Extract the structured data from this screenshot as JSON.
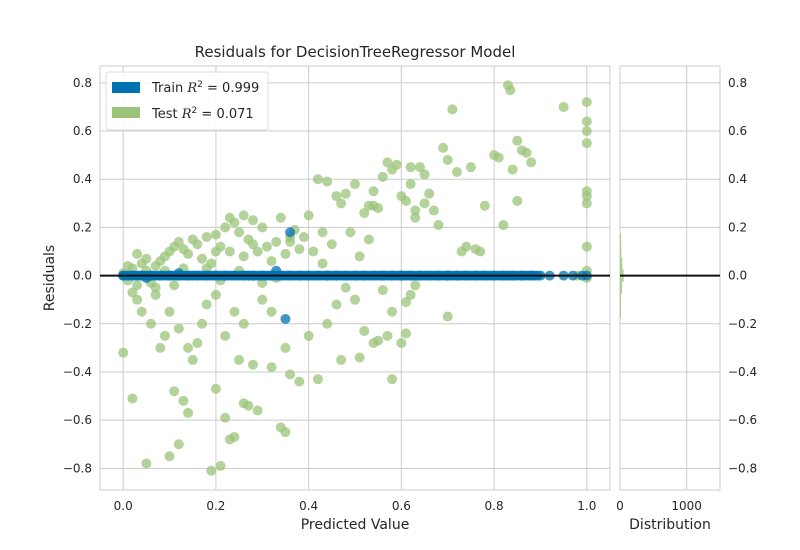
{
  "chart_data": {
    "type": "scatter",
    "title": "Residuals for DecisionTreeRegressor Model",
    "xlabel": "Predicted Value",
    "ylabel": "Residuals",
    "xlim": [
      -0.05,
      1.05
    ],
    "ylim": [
      -0.89,
      0.87
    ],
    "x_ticks": [
      "0.0",
      "0.2",
      "0.4",
      "0.6",
      "0.8",
      "1.0"
    ],
    "x_tick_values": [
      0,
      0.2,
      0.4,
      0.6,
      0.8,
      1.0
    ],
    "y_ticks": [
      "−0.8",
      "−0.6",
      "−0.4",
      "−0.2",
      "0.0",
      "0.2",
      "0.4",
      "0.6",
      "0.8"
    ],
    "y_tick_values": [
      -0.8,
      -0.6,
      -0.4,
      -0.2,
      0,
      0.2,
      0.4,
      0.6,
      0.8
    ],
    "grid": true,
    "legend_position": "top-left",
    "colors": {
      "train": "#0072b2",
      "test": "#9bc47a",
      "zero_line": "#111111",
      "grid": "#cccccc",
      "frame": "#cccccc"
    },
    "series": [
      {
        "name": "Train",
        "legend_label": "Train",
        "legend_r2": "0.999",
        "color": "#0072b2",
        "points": [
          [
            0.0,
            0.0
          ],
          [
            0.02,
            0.0
          ],
          [
            0.04,
            0.0
          ],
          [
            0.06,
            0.0
          ],
          [
            0.08,
            0.0
          ],
          [
            0.1,
            0.0
          ],
          [
            0.12,
            0.0
          ],
          [
            0.14,
            0.0
          ],
          [
            0.16,
            0.0
          ],
          [
            0.18,
            0.0
          ],
          [
            0.2,
            0.0
          ],
          [
            0.22,
            0.0
          ],
          [
            0.24,
            0.0
          ],
          [
            0.26,
            0.0
          ],
          [
            0.28,
            0.0
          ],
          [
            0.3,
            0.0
          ],
          [
            0.32,
            0.0
          ],
          [
            0.34,
            0.0
          ],
          [
            0.36,
            0.0
          ],
          [
            0.38,
            0.0
          ],
          [
            0.4,
            0.0
          ],
          [
            0.42,
            0.0
          ],
          [
            0.44,
            0.0
          ],
          [
            0.46,
            0.0
          ],
          [
            0.48,
            0.0
          ],
          [
            0.5,
            0.0
          ],
          [
            0.52,
            0.0
          ],
          [
            0.54,
            0.0
          ],
          [
            0.56,
            0.0
          ],
          [
            0.58,
            0.0
          ],
          [
            0.6,
            0.0
          ],
          [
            0.62,
            0.0
          ],
          [
            0.64,
            0.0
          ],
          [
            0.66,
            0.0
          ],
          [
            0.68,
            0.0
          ],
          [
            0.7,
            0.0
          ],
          [
            0.72,
            0.0
          ],
          [
            0.74,
            0.0
          ],
          [
            0.76,
            0.0
          ],
          [
            0.78,
            0.0
          ],
          [
            0.8,
            0.0
          ],
          [
            0.82,
            0.0
          ],
          [
            0.84,
            0.0
          ],
          [
            0.86,
            0.0
          ],
          [
            0.88,
            0.0
          ],
          [
            0.9,
            0.0
          ],
          [
            0.95,
            0.0
          ],
          [
            0.97,
            0.0
          ],
          [
            0.99,
            0.0
          ],
          [
            1.0,
            0.0
          ],
          [
            0.35,
            -0.18
          ],
          [
            0.36,
            0.18
          ],
          [
            0.33,
            0.02
          ],
          [
            0.12,
            0.01
          ],
          [
            0.05,
            -0.01
          ],
          [
            0.27,
            0.0
          ],
          [
            0.44,
            0.0
          ],
          [
            0.92,
            0.0
          ],
          [
            0.6,
            0.0
          ],
          [
            0.7,
            0.0
          ]
        ]
      },
      {
        "name": "Test",
        "legend_label": "Test",
        "legend_r2": "0.071",
        "color": "#9bc47a",
        "points": [
          [
            0.0,
            -0.32
          ],
          [
            0.02,
            -0.51
          ],
          [
            0.05,
            -0.78
          ],
          [
            0.1,
            -0.75
          ],
          [
            0.12,
            -0.7
          ],
          [
            0.11,
            -0.48
          ],
          [
            0.13,
            -0.52
          ],
          [
            0.14,
            -0.57
          ],
          [
            0.19,
            -0.81
          ],
          [
            0.21,
            -0.79
          ],
          [
            0.2,
            -0.47
          ],
          [
            0.23,
            -0.68
          ],
          [
            0.24,
            -0.67
          ],
          [
            0.22,
            -0.59
          ],
          [
            0.26,
            -0.53
          ],
          [
            0.27,
            -0.54
          ],
          [
            0.29,
            -0.56
          ],
          [
            0.34,
            -0.63
          ],
          [
            0.35,
            -0.65
          ],
          [
            0.28,
            -0.37
          ],
          [
            0.32,
            -0.38
          ],
          [
            0.36,
            -0.41
          ],
          [
            0.42,
            -0.43
          ],
          [
            0.38,
            -0.44
          ],
          [
            0.47,
            -0.35
          ],
          [
            0.51,
            -0.34
          ],
          [
            0.52,
            -0.23
          ],
          [
            0.57,
            -0.25
          ],
          [
            0.58,
            -0.43
          ],
          [
            0.6,
            -0.28
          ],
          [
            0.61,
            -0.24
          ],
          [
            0.54,
            -0.28
          ],
          [
            0.55,
            -0.27
          ],
          [
            0.62,
            -0.08
          ],
          [
            0.35,
            -0.3
          ],
          [
            0.4,
            -0.25
          ],
          [
            0.44,
            -0.2
          ],
          [
            0.46,
            -0.12
          ],
          [
            0.48,
            -0.05
          ],
          [
            0.5,
            -0.1
          ],
          [
            0.56,
            -0.06
          ],
          [
            0.58,
            -0.15
          ],
          [
            0.61,
            -0.11
          ],
          [
            0.63,
            -0.04
          ],
          [
            0.7,
            -0.17
          ],
          [
            0.15,
            -0.35
          ],
          [
            0.16,
            -0.28
          ],
          [
            0.08,
            -0.3
          ],
          [
            0.06,
            -0.2
          ],
          [
            0.09,
            -0.25
          ],
          [
            0.04,
            -0.15
          ],
          [
            0.03,
            -0.1
          ],
          [
            0.07,
            -0.05
          ],
          [
            0.1,
            -0.15
          ],
          [
            0.12,
            -0.22
          ],
          [
            0.14,
            -0.3
          ],
          [
            0.17,
            -0.2
          ],
          [
            0.18,
            -0.12
          ],
          [
            0.2,
            -0.08
          ],
          [
            0.22,
            -0.25
          ],
          [
            0.24,
            -0.15
          ],
          [
            0.25,
            -0.35
          ],
          [
            0.26,
            -0.2
          ],
          [
            0.3,
            -0.1
          ],
          [
            0.32,
            -0.15
          ],
          [
            0.0,
            0.01
          ],
          [
            0.01,
            -0.02
          ],
          [
            0.02,
            0.03
          ],
          [
            0.03,
            -0.04
          ],
          [
            0.04,
            0.05
          ],
          [
            0.05,
            0.02
          ],
          [
            0.06,
            -0.03
          ],
          [
            0.07,
            0.04
          ],
          [
            0.08,
            0.06
          ],
          [
            0.09,
            0.08
          ],
          [
            0.1,
            0.1
          ],
          [
            0.11,
            0.12
          ],
          [
            0.12,
            0.14
          ],
          [
            0.13,
            0.11
          ],
          [
            0.14,
            0.09
          ],
          [
            0.15,
            0.15
          ],
          [
            0.16,
            0.13
          ],
          [
            0.17,
            0.07
          ],
          [
            0.18,
            0.16
          ],
          [
            0.19,
            0.05
          ],
          [
            0.2,
            0.17
          ],
          [
            0.21,
            0.12
          ],
          [
            0.22,
            0.2
          ],
          [
            0.23,
            0.1
          ],
          [
            0.24,
            0.22
          ],
          [
            0.25,
            0.18
          ],
          [
            0.26,
            0.08
          ],
          [
            0.27,
            0.15
          ],
          [
            0.28,
            0.23
          ],
          [
            0.29,
            0.1
          ],
          [
            0.3,
            0.2
          ],
          [
            0.31,
            0.12
          ],
          [
            0.32,
            0.06
          ],
          [
            0.33,
            0.14
          ],
          [
            0.34,
            0.24
          ],
          [
            0.35,
            0.09
          ],
          [
            0.36,
            0.16
          ],
          [
            0.38,
            0.11
          ],
          [
            0.4,
            0.25
          ],
          [
            0.41,
            0.1
          ],
          [
            0.43,
            0.05
          ],
          [
            0.45,
            0.13
          ],
          [
            0.47,
            0.3
          ],
          [
            0.49,
            0.18
          ],
          [
            0.5,
            0.38
          ],
          [
            0.51,
            0.08
          ],
          [
            0.52,
            0.26
          ],
          [
            0.53,
            0.15
          ],
          [
            0.54,
            0.35
          ],
          [
            0.55,
            0.28
          ],
          [
            0.56,
            0.41
          ],
          [
            0.57,
            0.47
          ],
          [
            0.58,
            0.44
          ],
          [
            0.59,
            0.46
          ],
          [
            0.6,
            0.33
          ],
          [
            0.61,
            0.31
          ],
          [
            0.62,
            0.38
          ],
          [
            0.63,
            0.24
          ],
          [
            0.64,
            0.45
          ],
          [
            0.65,
            0.42
          ],
          [
            0.66,
            0.34
          ],
          [
            0.67,
            0.27
          ],
          [
            0.68,
            0.21
          ],
          [
            0.69,
            0.53
          ],
          [
            0.7,
            0.48
          ],
          [
            0.71,
            0.69
          ],
          [
            0.72,
            0.43
          ],
          [
            0.74,
            0.12
          ],
          [
            0.75,
            0.45
          ],
          [
            0.77,
            0.1
          ],
          [
            0.78,
            0.29
          ],
          [
            0.8,
            0.5
          ],
          [
            0.81,
            0.49
          ],
          [
            0.82,
            0.21
          ],
          [
            0.83,
            0.79
          ],
          [
            0.835,
            0.77
          ],
          [
            0.84,
            0.44
          ],
          [
            0.85,
            0.56
          ],
          [
            0.86,
            0.52
          ],
          [
            0.87,
            0.51
          ],
          [
            0.88,
            0.47
          ],
          [
            0.85,
            0.31
          ],
          [
            0.95,
            0.7
          ],
          [
            0.98,
            0.0
          ],
          [
            1.0,
            0.72
          ],
          [
            1.0,
            0.64
          ],
          [
            1.0,
            0.6
          ],
          [
            1.0,
            0.55
          ],
          [
            1.0,
            0.35
          ],
          [
            1.0,
            0.33
          ],
          [
            1.0,
            0.3
          ],
          [
            1.0,
            0.12
          ],
          [
            1.0,
            0.02
          ],
          [
            1.0,
            -0.01
          ],
          [
            0.43,
            0.18
          ],
          [
            0.39,
            0.16
          ],
          [
            0.37,
            0.19
          ],
          [
            0.36,
            0.14
          ],
          [
            0.28,
            0.13
          ],
          [
            0.26,
            0.25
          ],
          [
            0.23,
            0.24
          ],
          [
            0.2,
            0.1
          ],
          [
            0.15,
            0.0
          ],
          [
            0.13,
            0.03
          ],
          [
            0.11,
            -0.04
          ],
          [
            0.09,
            0.02
          ],
          [
            0.07,
            -0.08
          ],
          [
            0.05,
            0.07
          ],
          [
            0.03,
            0.09
          ],
          [
            0.02,
            -0.07
          ],
          [
            0.01,
            0.04
          ],
          [
            0.18,
            0.03
          ],
          [
            0.21,
            -0.02
          ],
          [
            0.25,
            0.02
          ],
          [
            0.3,
            -0.03
          ],
          [
            0.33,
            -0.01
          ],
          [
            0.44,
            0.39
          ],
          [
            0.42,
            0.4
          ],
          [
            0.46,
            0.33
          ],
          [
            0.48,
            0.34
          ],
          [
            0.53,
            0.29
          ],
          [
            0.54,
            0.29
          ],
          [
            0.62,
            0.45
          ],
          [
            0.63,
            0.27
          ],
          [
            0.65,
            0.3
          ],
          [
            0.73,
            0.1
          ],
          [
            0.76,
            0.11
          ]
        ]
      }
    ],
    "distribution": {
      "xlabel": "Distribution",
      "x_ticks": [
        "0",
        "1000"
      ],
      "x_tick_values": [
        0,
        1000
      ],
      "xlim": [
        0,
        1500
      ],
      "bins": [
        {
          "y": -0.15,
          "count": 8
        },
        {
          "y": -0.1,
          "count": 14
        },
        {
          "y": -0.05,
          "count": 30
        },
        {
          "y": 0.0,
          "count": 55
        },
        {
          "y": 0.05,
          "count": 35
        },
        {
          "y": 0.1,
          "count": 20
        },
        {
          "y": 0.15,
          "count": 10
        }
      ]
    }
  }
}
